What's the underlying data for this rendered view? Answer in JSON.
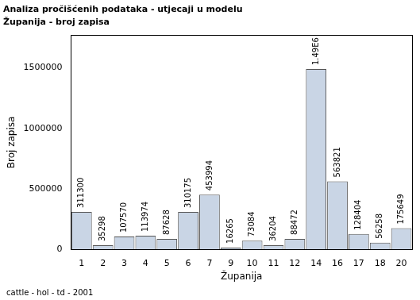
{
  "chart_data": {
    "type": "bar",
    "title": "Analiza pročišćenih podataka - utjecaji u modelu",
    "subtitle": "Županija - broj zapisa",
    "footnote": "cattle - hol - td - 2001",
    "x_label": "Županija",
    "y_label": "Broj zapisa",
    "categories": [
      "1",
      "2",
      "3",
      "4",
      "5",
      "6",
      "7",
      "9",
      "10",
      "11",
      "12",
      "14",
      "16",
      "17",
      "18",
      "20"
    ],
    "values": [
      311300,
      35298,
      107570,
      113974,
      87628,
      310175,
      453994,
      16265,
      73084,
      36204,
      88472,
      1490000,
      563821,
      128404,
      56258,
      175649
    ],
    "value_labels": [
      "311300",
      "35298",
      "107570",
      "113974",
      "87628",
      "310175",
      "453994",
      "16265",
      "73084",
      "36204",
      "88472",
      "1.49E6",
      "563821",
      "128404",
      "56258",
      "175649"
    ],
    "data_labels": true,
    "color": "#c9d5e5",
    "ylim": [
      0,
      1770000
    ],
    "yticks": [
      0,
      500000,
      1000000,
      1500000
    ],
    "grid": false
  }
}
